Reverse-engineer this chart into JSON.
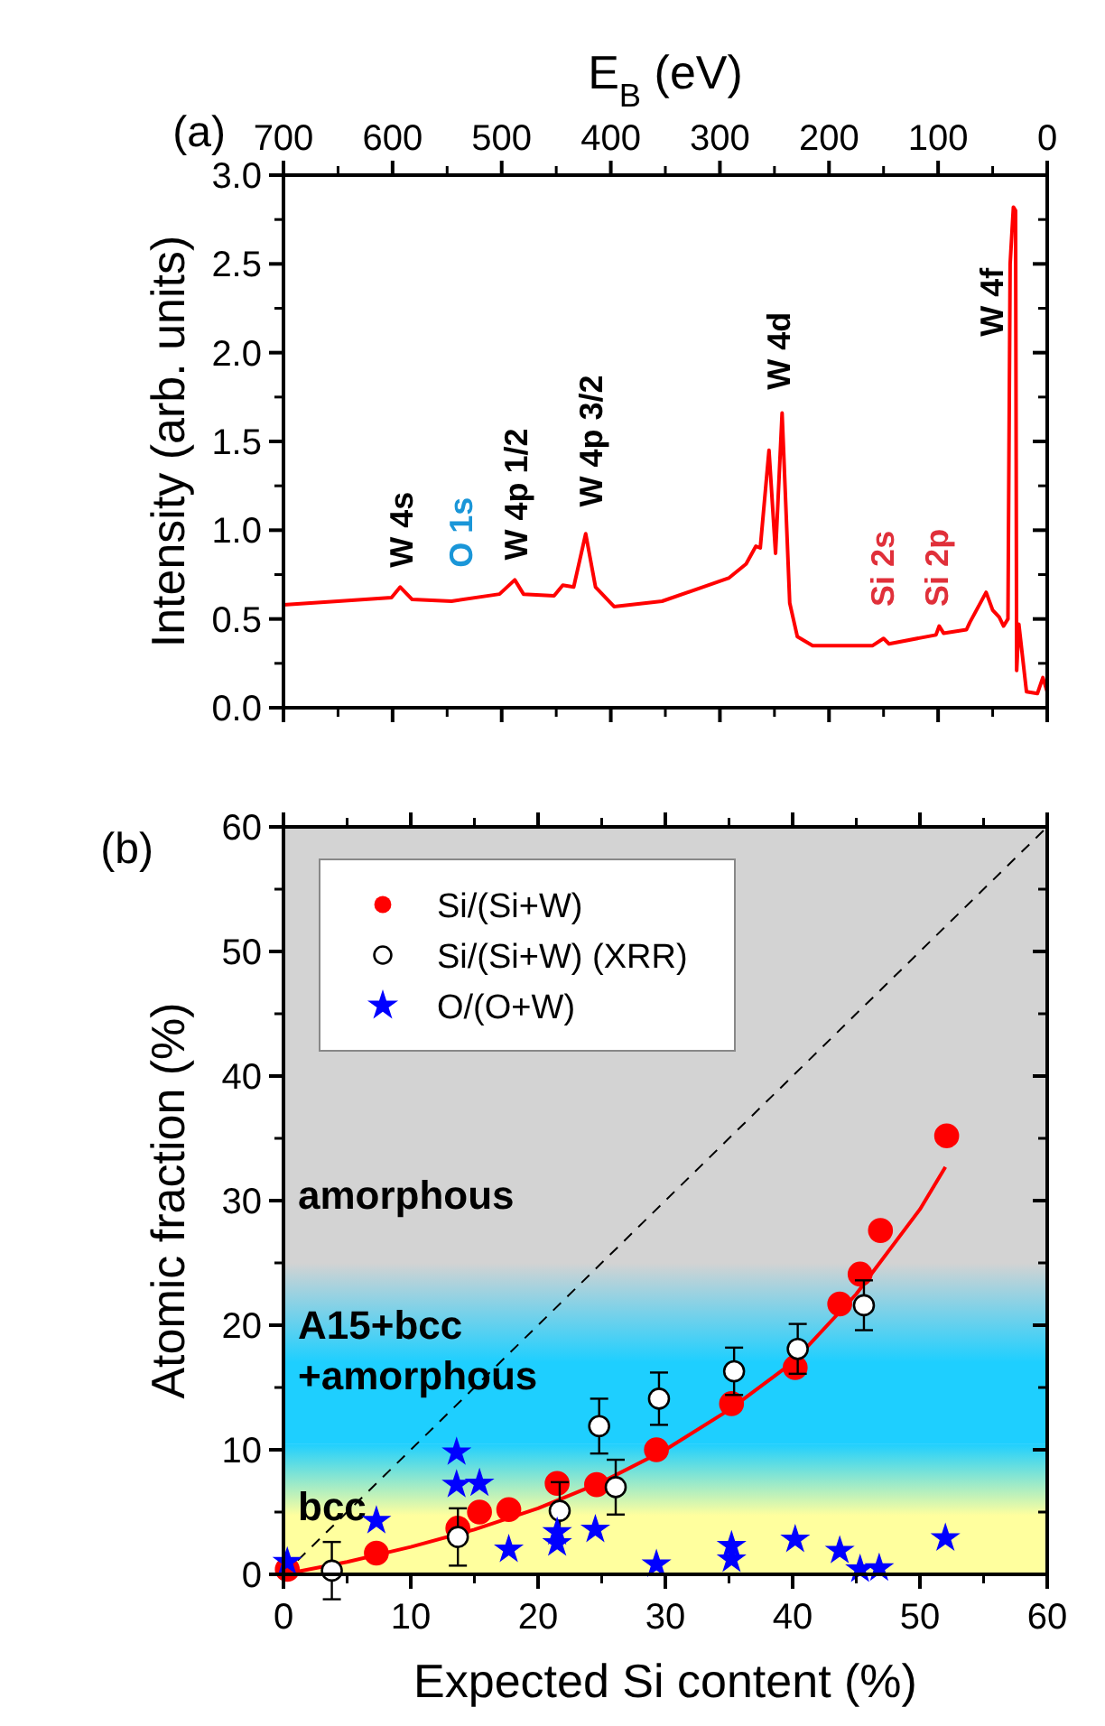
{
  "chart_data": [
    {
      "type": "line",
      "xlabel": "E$_{B}$ (eV)",
      "ylabel": "Intensity (arb. units)",
      "xlim": [
        700,
        0
      ],
      "xticks": [
        700,
        600,
        500,
        400,
        300,
        200,
        100,
        0
      ],
      "ylim": [
        0,
        3
      ],
      "yticks": [
        {
          "value": 0,
          "label": "0.0"
        },
        {
          "value": 0.5,
          "label": "0.5"
        },
        {
          "value": 1,
          "label": "1.0"
        },
        {
          "value": 1.5,
          "label": "1.5"
        },
        {
          "value": 2,
          "label": "2.0"
        },
        {
          "value": 2.5,
          "label": "2.5"
        },
        {
          "value": 3,
          "label": "3.0"
        }
      ],
      "legend": false,
      "series": [
        {
          "color": "#ff0000",
          "x": [
            700,
            650,
            601,
            593,
            582,
            546,
            502,
            488,
            480,
            452,
            444,
            434,
            423,
            414,
            397,
            353,
            292,
            276,
            267,
            263,
            255,
            249,
            243,
            236,
            229,
            215,
            160,
            150,
            145,
            102,
            99,
            95,
            74,
            71,
            56,
            50,
            44,
            40,
            36,
            34,
            31,
            29,
            28,
            26,
            19,
            9,
            4,
            0
          ],
          "values": [
            0.58,
            0.6,
            0.62,
            0.68,
            0.61,
            0.6,
            0.64,
            0.72,
            0.64,
            0.63,
            0.69,
            0.68,
            0.98,
            0.68,
            0.57,
            0.6,
            0.73,
            0.81,
            0.91,
            0.9,
            1.45,
            0.87,
            1.66,
            0.59,
            0.4,
            0.35,
            0.35,
            0.39,
            0.36,
            0.41,
            0.46,
            0.42,
            0.44,
            0.48,
            0.65,
            0.55,
            0.51,
            0.46,
            0.5,
            2.5,
            2.82,
            2.8,
            0.21,
            0.47,
            0.09,
            0.08,
            0.17,
            0.09
          ]
        }
      ],
      "annotations": [
        "(a)",
        "W 4s",
        "O 1s",
        "W 4p 1/2",
        "W 4p 3/2",
        "W 4d",
        "Si 2s",
        "Si 2p",
        "W 4f"
      ]
    },
    {
      "type": "scatter",
      "xlabel": "Expected Si content (%)",
      "ylabel": "Atomic fraction (%)",
      "xlim": [
        0,
        60
      ],
      "xticks": [
        0,
        10,
        20,
        30,
        40,
        50,
        60
      ],
      "ylim": [
        0,
        60
      ],
      "yticks": [
        0,
        10,
        20,
        30,
        40,
        50,
        60
      ],
      "legend": "top left",
      "bands": [
        {
          "axis": "y",
          "from": 0,
          "to": 10.5,
          "label": "bcc",
          "color": "#ffff9e"
        },
        {
          "axis": "y",
          "from": 10.5,
          "to": 25,
          "label": "A15+bcc\n+amorphous",
          "color": "#1ecfff"
        },
        {
          "axis": "y",
          "from": 25,
          "to": 60,
          "label": "amorphous",
          "color": "#d3d3d3"
        }
      ],
      "series": [
        {
          "type": "line",
          "color": "#000000",
          "line_style": "dashed",
          "marker": "none",
          "x": [
            0,
            60
          ],
          "values": [
            0,
            60
          ]
        },
        {
          "type": "line",
          "color": "#ff0000",
          "line_style": "solid",
          "marker": "none",
          "x": [
            0,
            5,
            10,
            15,
            20,
            25,
            30,
            35,
            40,
            45,
            50,
            52
          ],
          "values": [
            0,
            1,
            2.2,
            3.6,
            5.3,
            7.4,
            10,
            13.2,
            17,
            22.5,
            29.3,
            32.7
          ]
        },
        {
          "name": "Si/(Si+W)",
          "color": "#ff0000",
          "marker": "circle",
          "x": [
            0.3,
            7.3,
            13.7,
            15.4,
            17.7,
            21.5,
            24.6,
            29.3,
            35.2,
            40.2,
            43.7,
            45.3,
            46.9,
            52.1
          ],
          "values": [
            0.4,
            1.7,
            3.7,
            5,
            5.2,
            7.3,
            7.2,
            10,
            13.7,
            16.6,
            21.7,
            24.1,
            27.6,
            35.2
          ]
        },
        {
          "name": "Si/(Si+W) (XRR)",
          "color": "#ffffff",
          "marker": "circle",
          "x": [
            3.8,
            13.7,
            21.7,
            24.8,
            26.1,
            29.5,
            35.4,
            40.4,
            45.6
          ],
          "values": [
            0.3,
            3,
            5.1,
            11.9,
            7,
            14.1,
            16.3,
            18.1,
            21.6
          ],
          "errors": [
            2.3,
            2.3,
            2.3,
            2.2,
            2.2,
            2.1,
            1.9,
            2,
            2
          ]
        },
        {
          "name": "O/(O+W)",
          "color": "#0000ff",
          "marker": "star",
          "x": [
            0.3,
            7.3,
            13.6,
            13.6,
            15.4,
            17.7,
            21.5,
            21.5,
            24.5,
            29.3,
            35.2,
            35.2,
            40.2,
            43.7,
            45.3,
            46.8,
            52
          ],
          "values": [
            1,
            4.3,
            9.8,
            7.2,
            7.3,
            2,
            3.4,
            2.5,
            3.6,
            0.8,
            2.3,
            1.2,
            2.8,
            1.9,
            0.4,
            0.5,
            2.9
          ]
        }
      ],
      "annotations": [
        "(b)"
      ]
    }
  ]
}
